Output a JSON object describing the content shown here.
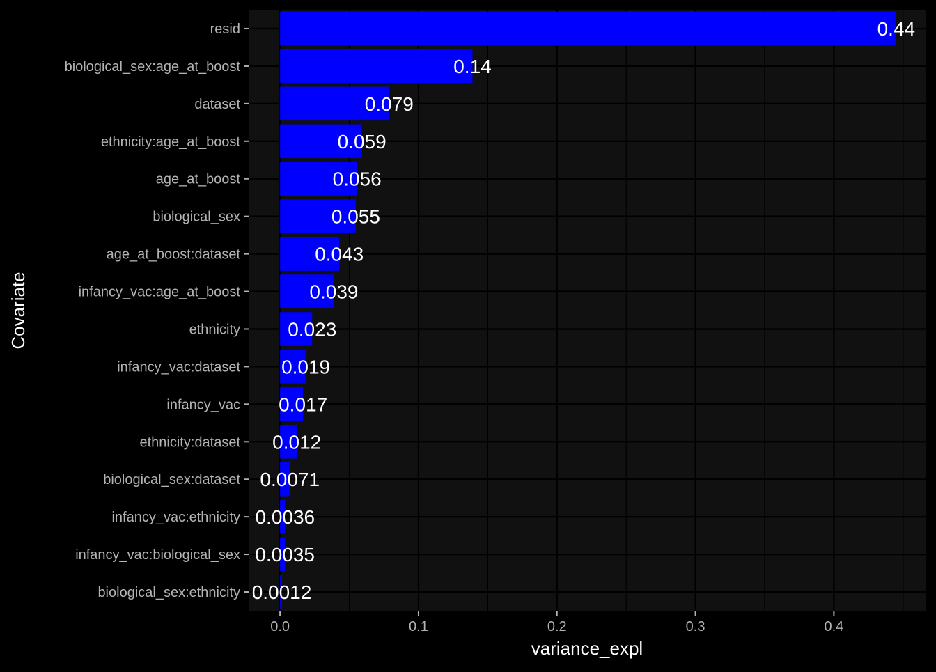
{
  "chart_data": {
    "type": "bar",
    "orientation": "horizontal",
    "xlabel": "variance_expl",
    "ylabel": "Covariate",
    "xlim": [
      -0.0222,
      0.4662
    ],
    "x_ticks": [
      0.0,
      0.1,
      0.2,
      0.3,
      0.4
    ],
    "x_tick_labels": [
      "0.0",
      "0.1",
      "0.2",
      "0.3",
      "0.4"
    ],
    "grid": true,
    "legend": "none",
    "colors": {
      "bar": "#0000FF",
      "panel_background": "#111111",
      "plot_background": "#000000",
      "grid": "#000000",
      "tick_label": "#b3b3b3",
      "data_label": "#ffffff",
      "axis_title": "#ffffff"
    },
    "categories": [
      "resid",
      "biological_sex:age_at_boost",
      "dataset",
      "ethnicity:age_at_boost",
      "age_at_boost",
      "biological_sex",
      "age_at_boost:dataset",
      "infancy_vac:age_at_boost",
      "ethnicity",
      "infancy_vac:dataset",
      "infancy_vac",
      "ethnicity:dataset",
      "biological_sex:dataset",
      "infancy_vac:ethnicity",
      "infancy_vac:biological_sex",
      "biological_sex:ethnicity"
    ],
    "values": [
      0.445,
      0.139,
      0.0788,
      0.0591,
      0.0556,
      0.0547,
      0.0428,
      0.0389,
      0.0232,
      0.0186,
      0.0166,
      0.0121,
      0.0071,
      0.0036,
      0.0035,
      0.0012
    ],
    "labels": [
      "0.44",
      "0.14",
      "0.079",
      "0.059",
      "0.056",
      "0.055",
      "0.043",
      "0.039",
      "0.023",
      "0.019",
      "0.017",
      "0.012",
      "0.0071",
      "0.0036",
      "0.0035",
      "0.0012"
    ]
  }
}
